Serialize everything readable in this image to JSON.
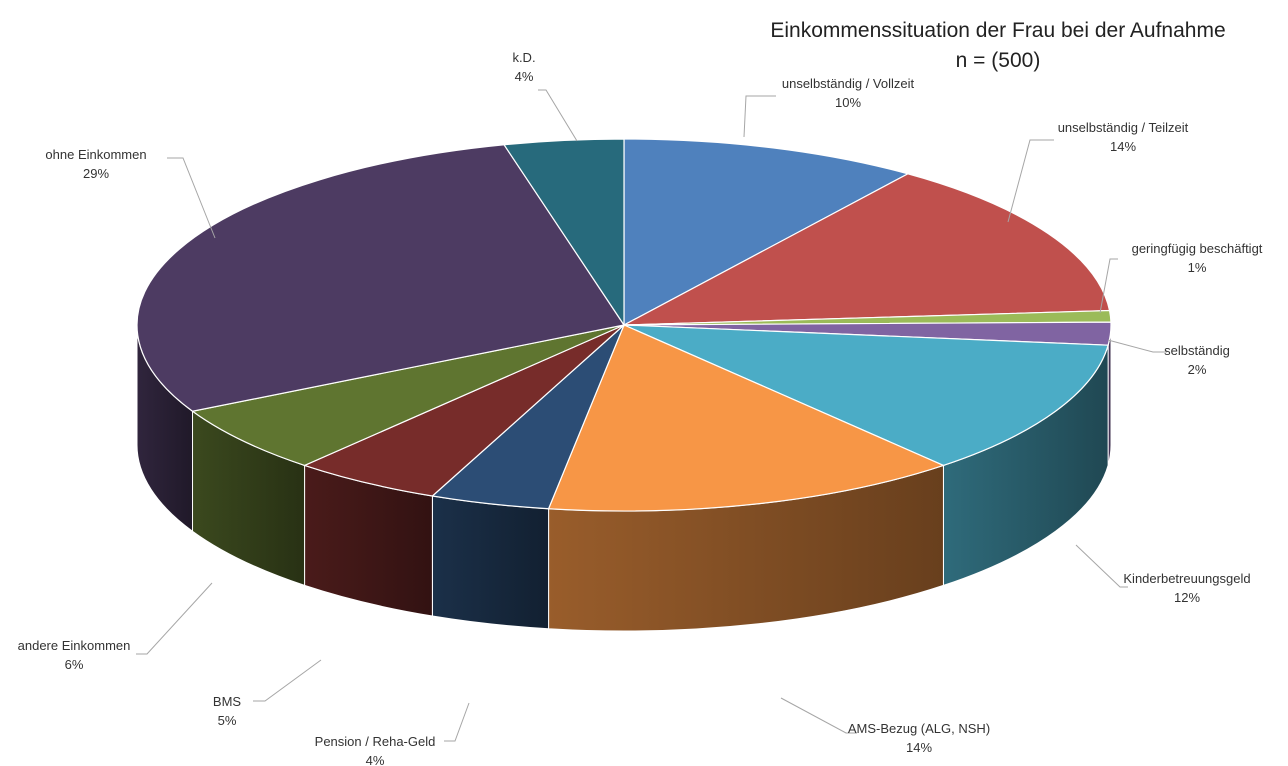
{
  "chart_data": {
    "type": "pie",
    "style": "3d",
    "title": "Einkommenssituation der Frau bei der Aufnahme",
    "subtitle": "n = (500)",
    "legend": "none",
    "slices": [
      {
        "label": "unselbständig / Vollzeit",
        "value": 10,
        "value_label": "10%",
        "color": "#4f81bd"
      },
      {
        "label": "unselbständig / Teilzeit",
        "value": 14,
        "value_label": "14%",
        "color": "#c0504d"
      },
      {
        "label": "geringfügig beschäftigt",
        "value": 1,
        "value_label": "1%",
        "color": "#9bbb59"
      },
      {
        "label": "selbständig",
        "value": 2,
        "value_label": "2%",
        "color": "#8064a2"
      },
      {
        "label": "Kinderbetreuungsgeld",
        "value": 12,
        "value_label": "12%",
        "color": "#4bacc6"
      },
      {
        "label": "AMS-Bezug (ALG, NSH)",
        "value": 14,
        "value_label": "14%",
        "color": "#f79646"
      },
      {
        "label": "Pension / Reha-Geld",
        "value": 4,
        "value_label": "4%",
        "color": "#2c4d75"
      },
      {
        "label": "BMS",
        "value": 5,
        "value_label": "5%",
        "color": "#772c2a"
      },
      {
        "label": "andere Einkommen",
        "value": 6,
        "value_label": "6%",
        "color": "#5f7530"
      },
      {
        "label": "ohne Einkommen",
        "value": 29,
        "value_label": "29%",
        "color": "#4d3b62"
      },
      {
        "label": "k.D.",
        "value": 4,
        "value_label": "4%",
        "color": "#276a7c"
      }
    ]
  }
}
